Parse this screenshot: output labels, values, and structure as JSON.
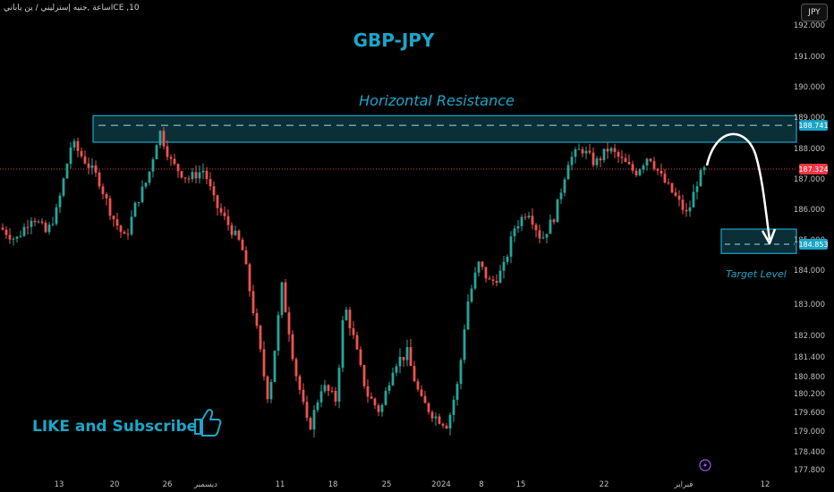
{
  "header": {
    "symbol_meta": "ICE ,10ساعة ,جنيه إسترليني / ين ياباني",
    "currency_button": "JPY"
  },
  "annotations": {
    "title": "GBP-JPY",
    "resistance_label": "Horizontal Resistance",
    "target_label": "Target Level",
    "cta": "LIKE and Subscribe",
    "thumbs_up_icon": "thumbs-up-icon",
    "lightning_icon": "lightning-icon"
  },
  "colors": {
    "background": "#000000",
    "up": "#26a69a",
    "down": "#ef5350",
    "accent": "#1aa6c9",
    "zone_fill": "#0f3f48",
    "current_price_tag": "#f23645",
    "arrow": "#ffffff"
  },
  "chart_data": {
    "type": "candlestick",
    "title": "GBP-JPY",
    "yaxis_ticks": [
      "192.000",
      "191.000",
      "190.000",
      "189.000",
      "188.000",
      "187.000",
      "186.000",
      "185.000",
      "184.000",
      "183.000",
      "182.000",
      "181.400",
      "180.800",
      "180.200",
      "179.600",
      "179.000",
      "178.400",
      "177.800"
    ],
    "ylim": [
      177.6,
      192.4
    ],
    "xaxis_ticks": [
      "13",
      "20",
      "26",
      "ديسمبر",
      "11",
      "18",
      "25",
      "2024",
      "8",
      "15",
      "22",
      "فبراير",
      "12"
    ],
    "price_labels": {
      "resistance": "188.741",
      "current": "187.324",
      "target": "184.853"
    },
    "resistance_zone": [
      188.2,
      189.05
    ],
    "target_zone": [
      184.55,
      185.35
    ],
    "current_price": 187.324,
    "price_path": [
      [
        0,
        185.4
      ],
      [
        18,
        185.0
      ],
      [
        36,
        185.8
      ],
      [
        52,
        185.2
      ],
      [
        64,
        186.0
      ],
      [
        80,
        188.2
      ],
      [
        95,
        187.6
      ],
      [
        110,
        187.0
      ],
      [
        125,
        185.8
      ],
      [
        140,
        185.0
      ],
      [
        152,
        186.2
      ],
      [
        165,
        187.0
      ],
      [
        178,
        188.6
      ],
      [
        192,
        187.5
      ],
      [
        210,
        187.0
      ],
      [
        228,
        187.3
      ],
      [
        240,
        186.2
      ],
      [
        255,
        185.5
      ],
      [
        270,
        184.8
      ],
      [
        285,
        182.5
      ],
      [
        300,
        180.0
      ],
      [
        315,
        183.5
      ],
      [
        330,
        181.0
      ],
      [
        345,
        179.0
      ],
      [
        360,
        180.5
      ],
      [
        375,
        180.0
      ],
      [
        385,
        183.0
      ],
      [
        398,
        181.6
      ],
      [
        410,
        180.2
      ],
      [
        425,
        179.6
      ],
      [
        440,
        181.2
      ],
      [
        455,
        181.5
      ],
      [
        470,
        180.0
      ],
      [
        485,
        179.5
      ],
      [
        500,
        179.2
      ],
      [
        512,
        180.6
      ],
      [
        522,
        183.0
      ],
      [
        535,
        184.2
      ],
      [
        548,
        183.6
      ],
      [
        562,
        184.0
      ],
      [
        575,
        185.4
      ],
      [
        590,
        186.0
      ],
      [
        605,
        185.0
      ],
      [
        620,
        185.8
      ],
      [
        635,
        187.6
      ],
      [
        650,
        188.0
      ],
      [
        665,
        187.5
      ],
      [
        680,
        188.0
      ],
      [
        695,
        187.6
      ],
      [
        710,
        187.2
      ],
      [
        725,
        187.8
      ],
      [
        740,
        187.0
      ],
      [
        755,
        186.4
      ],
      [
        768,
        185.8
      ],
      [
        780,
        187.0
      ],
      [
        788,
        187.32
      ]
    ]
  }
}
